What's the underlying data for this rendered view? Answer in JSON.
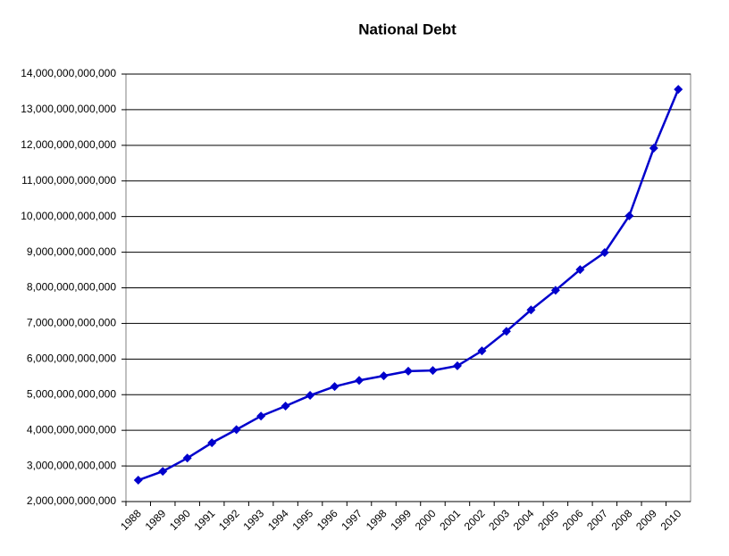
{
  "chart_data": {
    "type": "line",
    "title": "National Debt",
    "categories": [
      "1988",
      "1989",
      "1990",
      "1991",
      "1992",
      "1993",
      "1994",
      "1995",
      "1996",
      "1997",
      "1998",
      "1999",
      "2000",
      "2001",
      "2002",
      "2003",
      "2004",
      "2005",
      "2006",
      "2007",
      "2008",
      "2009",
      "2010"
    ],
    "series": [
      {
        "name": "National Debt",
        "color": "#0000cc",
        "values": [
          2600000000000,
          2850000000000,
          3220000000000,
          3650000000000,
          4020000000000,
          4400000000000,
          4680000000000,
          4980000000000,
          5230000000000,
          5400000000000,
          5530000000000,
          5660000000000,
          5680000000000,
          5810000000000,
          6230000000000,
          6780000000000,
          7380000000000,
          7930000000000,
          8510000000000,
          8990000000000,
          10020000000000,
          11920000000000,
          13570000000000
        ]
      }
    ],
    "ylim": [
      2000000000000,
      14000000000000
    ],
    "yticks": [
      {
        "value": 2000000000000,
        "label": "2,000,000,000,000"
      },
      {
        "value": 3000000000000,
        "label": "3,000,000,000,000"
      },
      {
        "value": 4000000000000,
        "label": "4,000,000,000,000"
      },
      {
        "value": 5000000000000,
        "label": "5,000,000,000,000"
      },
      {
        "value": 6000000000000,
        "label": "6,000,000,000,000"
      },
      {
        "value": 7000000000000,
        "label": "7,000,000,000,000"
      },
      {
        "value": 8000000000000,
        "label": "8,000,000,000,000"
      },
      {
        "value": 9000000000000,
        "label": "9,000,000,000,000"
      },
      {
        "value": 10000000000000,
        "label": "10,000,000,000,000"
      },
      {
        "value": 11000000000000,
        "label": "11,000,000,000,000"
      },
      {
        "value": 12000000000000,
        "label": "12,000,000,000,000"
      },
      {
        "value": 13000000000000,
        "label": "13,000,000,000,000"
      },
      {
        "value": 14000000000000,
        "label": "14,000,000,000,000"
      }
    ],
    "grid": true
  }
}
